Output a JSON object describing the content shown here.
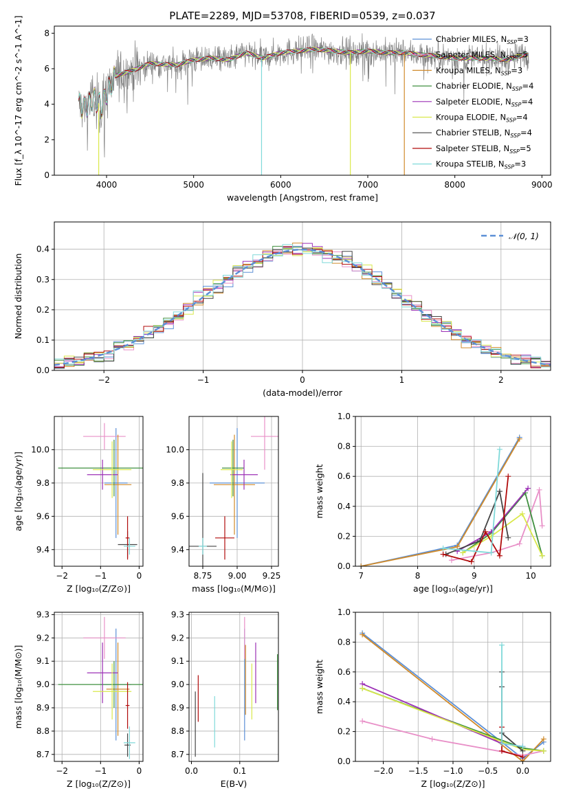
{
  "title": "PLATE=2289, MJD=53708, FIBERID=0539, z=0.037",
  "colors": {
    "Chabrier MILES": "#5b8fd6",
    "Salpeter MILES": "#e88fc7",
    "Kroupa MILES": "#d08a2a",
    "Chabrier ELODIE": "#3f8f3f",
    "Salpeter ELODIE": "#9b2fb5",
    "Kroupa ELODIE": "#d9e84a",
    "Chabrier STELIB": "#444444",
    "Salpeter STELIB": "#b00a0a",
    "Kroupa STELIB": "#7fd9d9",
    "normal": "#5b8fd6",
    "grid": "#b0b0b0"
  },
  "legend_spectrum": [
    {
      "model": "Chabrier MILES",
      "nssp": "3"
    },
    {
      "model": "Salpeter MILES",
      "nssp": "5"
    },
    {
      "model": "Kroupa MILES",
      "nssp": "3"
    },
    {
      "model": "Chabrier ELODIE",
      "nssp": "4"
    },
    {
      "model": "Salpeter ELODIE",
      "nssp": "4"
    },
    {
      "model": "Kroupa ELODIE",
      "nssp": "4"
    },
    {
      "model": "Chabrier STELIB",
      "nssp": "4"
    },
    {
      "model": "Salpeter STELIB",
      "nssp": "5"
    },
    {
      "model": "Kroupa STELIB",
      "nssp": "3"
    }
  ],
  "legend_hist": "𝒩(0, 1)",
  "chart_data": [
    {
      "id": "spectrum",
      "type": "line",
      "xlabel": "wavelength [Angstrom, rest frame]",
      "ylabel": "Flux [f_λ 10^-17 erg cm^-2 s^-1 A^-1]",
      "xlim": [
        3400,
        9100
      ],
      "ylim": [
        0,
        8.4
      ],
      "xticks": [
        4000,
        5000,
        6000,
        7000,
        8000,
        9000
      ],
      "yticks": [
        0,
        2,
        4,
        6,
        8
      ],
      "data_x": [
        3680,
        3750,
        3850,
        3950,
        4000,
        4100,
        4300,
        4500,
        4800,
        5000,
        5200,
        5400,
        5600,
        5800,
        6000,
        6200,
        6400,
        6600,
        6800,
        7000,
        7200,
        7400,
        7600,
        7800,
        8000,
        8200,
        8400,
        8600,
        8800
      ],
      "data_y": [
        4.0,
        3.8,
        4.3,
        3.9,
        4.6,
        5.6,
        5.9,
        6.3,
        6.2,
        6.5,
        6.6,
        6.5,
        6.9,
        6.6,
        6.9,
        7.0,
        7.1,
        7.0,
        6.9,
        7.0,
        6.9,
        6.9,
        6.8,
        6.7,
        6.6,
        6.6,
        6.6,
        6.5,
        6.8
      ],
      "model_drops": [
        {
          "model": "Kroupa STELIB",
          "x": 5780
        },
        {
          "model": "Kroupa ELODIE",
          "x": 6800
        },
        {
          "model": "Kroupa MILES",
          "x": 7420
        },
        {
          "model": "Kroupa ELODIE",
          "x": 3910
        }
      ]
    },
    {
      "id": "residuals",
      "type": "histogram",
      "xlabel": "(data-model)/error",
      "ylabel": "Normed distribution",
      "xlim": [
        -2.5,
        2.5
      ],
      "ylim": [
        0,
        0.49
      ],
      "xticks": [
        -2,
        -1,
        0,
        1,
        2
      ],
      "yticks": [
        0.0,
        0.1,
        0.2,
        0.3,
        0.4
      ],
      "bin_width": 0.1
    },
    {
      "id": "age_vs_Z",
      "type": "scatter",
      "xlabel": "Z [log₁₀(Z/Z⊙)]",
      "ylabel": "age  [log₁₀(age/yr)]",
      "xlim": [
        -2.2,
        0.1
      ],
      "ylim": [
        9.3,
        10.2
      ],
      "xticks": [
        -2,
        -1,
        0
      ],
      "yticks": [
        9.4,
        9.6,
        9.8,
        10.0
      ],
      "points": [
        {
          "model": "Chabrier MILES",
          "x": -0.6,
          "y": 9.8,
          "ex": 0.3,
          "ey": 0.33
        },
        {
          "model": "Salpeter MILES",
          "x": -0.9,
          "y": 10.08,
          "ex": 0.55,
          "ey": 0.08
        },
        {
          "model": "Kroupa MILES",
          "x": -0.55,
          "y": 9.79,
          "ex": 0.35,
          "ey": 0.3
        },
        {
          "model": "Chabrier ELODIE",
          "x": -0.65,
          "y": 9.89,
          "ex": 1.45,
          "ey": 0.17
        },
        {
          "model": "Salpeter ELODIE",
          "x": -0.95,
          "y": 9.85,
          "ex": 0.4,
          "ey": 0.09
        },
        {
          "model": "Kroupa ELODIE",
          "x": -0.7,
          "y": 9.88,
          "ex": 0.5,
          "ey": 0.17
        },
        {
          "model": "Chabrier STELIB",
          "x": -0.3,
          "y": 9.43,
          "ex": 0.25,
          "ey": 0.08
        },
        {
          "model": "Salpeter STELIB",
          "x": -0.3,
          "y": 9.47,
          "ex": 0.05,
          "ey": 0.13
        },
        {
          "model": "Kroupa STELIB",
          "x": -0.25,
          "y": 9.42,
          "ex": 0.15,
          "ey": 0.05
        }
      ]
    },
    {
      "id": "age_vs_mass",
      "type": "scatter",
      "xlabel": "mass [log₁₀(M/M⊙)]",
      "ylabel": "",
      "xlim": [
        8.65,
        9.3
      ],
      "ylim": [
        9.3,
        10.2
      ],
      "xticks": [
        8.75,
        9.0,
        9.25
      ],
      "yticks": [
        9.4,
        9.6,
        9.8,
        10.0
      ],
      "points": [
        {
          "model": "Chabrier MILES",
          "x": 9.0,
          "y": 9.8,
          "ex": 0.2,
          "ey": 0.33
        },
        {
          "model": "Salpeter MILES",
          "x": 9.2,
          "y": 10.08,
          "ex": 0.1,
          "ey": 0.2
        },
        {
          "model": "Kroupa MILES",
          "x": 8.98,
          "y": 9.79,
          "ex": 0.15,
          "ey": 0.3
        },
        {
          "model": "Chabrier ELODIE",
          "x": 8.97,
          "y": 9.89,
          "ex": 0.08,
          "ey": 0.17
        },
        {
          "model": "Salpeter ELODIE",
          "x": 9.05,
          "y": 9.85,
          "ex": 0.1,
          "ey": 0.09
        },
        {
          "model": "Kroupa ELODIE",
          "x": 8.96,
          "y": 9.88,
          "ex": 0.08,
          "ey": 0.17
        },
        {
          "model": "Chabrier STELIB",
          "x": 8.75,
          "y": 9.42,
          "ex": 0.1,
          "ey": 0.44
        },
        {
          "model": "Salpeter STELIB",
          "x": 8.91,
          "y": 9.47,
          "ex": 0.07,
          "ey": 0.13
        },
        {
          "model": "Kroupa STELIB",
          "x": 8.75,
          "y": 9.42,
          "ex": 0.03,
          "ey": 0.05
        }
      ]
    },
    {
      "id": "weight_vs_age",
      "type": "line",
      "xlabel": "age  [log₁₀(age/yr)]",
      "ylabel": "mass weight",
      "xlim": [
        6.9,
        10.35
      ],
      "ylim": [
        0,
        1.0
      ],
      "xticks": [
        7,
        8,
        9,
        10
      ],
      "yticks": [
        0.0,
        0.2,
        0.4,
        0.6,
        0.8,
        1.0
      ],
      "series": [
        {
          "model": "Chabrier MILES",
          "x": [
            7.0,
            8.7,
            9.8
          ],
          "y": [
            0.0,
            0.14,
            0.86
          ]
        },
        {
          "model": "Kroupa MILES",
          "x": [
            7.0,
            8.7,
            9.8
          ],
          "y": [
            0.0,
            0.13,
            0.85
          ]
        },
        {
          "model": "Salpeter MILES",
          "x": [
            8.6,
            9.3,
            9.8,
            10.15,
            10.2
          ],
          "y": [
            0.04,
            0.09,
            0.15,
            0.51,
            0.27
          ]
        },
        {
          "model": "Chabrier ELODIE",
          "x": [
            8.8,
            9.3,
            9.9,
            10.2
          ],
          "y": [
            0.09,
            0.22,
            0.49,
            0.07
          ]
        },
        {
          "model": "Salpeter ELODIE",
          "x": [
            8.7,
            9.3,
            9.95
          ],
          "y": [
            0.1,
            0.23,
            0.52
          ]
        },
        {
          "model": "Kroupa ELODIE",
          "x": [
            8.8,
            9.3,
            9.85,
            10.2
          ],
          "y": [
            0.09,
            0.2,
            0.35,
            0.07
          ]
        },
        {
          "model": "Chabrier STELIB",
          "x": [
            8.5,
            9.1,
            9.45,
            9.6
          ],
          "y": [
            0.08,
            0.17,
            0.5,
            0.19
          ]
        },
        {
          "model": "Salpeter STELIB",
          "x": [
            8.45,
            8.95,
            9.2,
            9.45,
            9.6
          ],
          "y": [
            0.08,
            0.03,
            0.23,
            0.07,
            0.6
          ]
        },
        {
          "model": "Kroupa STELIB",
          "x": [
            8.45,
            9.3,
            9.45
          ],
          "y": [
            0.12,
            0.09,
            0.78
          ]
        }
      ]
    },
    {
      "id": "mass_vs_Z",
      "type": "scatter",
      "xlabel": "Z [log₁₀(Z/Z⊙)]",
      "ylabel": "mass [log₁₀(M/M⊙)]",
      "xlim": [
        -2.2,
        0.1
      ],
      "ylim": [
        8.67,
        9.31
      ],
      "xticks": [
        -2,
        -1,
        0
      ],
      "yticks": [
        8.7,
        8.8,
        8.9,
        9.0,
        9.1,
        9.2,
        9.3
      ],
      "points": [
        {
          "model": "Chabrier MILES",
          "x": -0.6,
          "y": 9.0,
          "ex": 0.4,
          "ey": 0.24
        },
        {
          "model": "Salpeter MILES",
          "x": -0.9,
          "y": 9.2,
          "ex": 0.55,
          "ey": 0.09
        },
        {
          "model": "Kroupa MILES",
          "x": -0.55,
          "y": 8.98,
          "ex": 0.3,
          "ey": 0.2
        },
        {
          "model": "Chabrier ELODIE",
          "x": -0.65,
          "y": 9.0,
          "ex": 1.45,
          "ey": 0.1
        },
        {
          "model": "Salpeter ELODIE",
          "x": -0.95,
          "y": 9.05,
          "ex": 0.4,
          "ey": 0.13
        },
        {
          "model": "Kroupa ELODIE",
          "x": -0.7,
          "y": 8.97,
          "ex": 0.5,
          "ey": 0.12
        },
        {
          "model": "Chabrier STELIB",
          "x": -0.3,
          "y": 8.74,
          "ex": 0.08,
          "ey": 0.05
        },
        {
          "model": "Salpeter STELIB",
          "x": -0.3,
          "y": 8.91,
          "ex": 0.05,
          "ey": 0.1
        },
        {
          "model": "Kroupa STELIB",
          "x": -0.25,
          "y": 8.75,
          "ex": 0.15,
          "ey": 0.07
        }
      ]
    },
    {
      "id": "mass_vs_ebv",
      "type": "scatter",
      "xlabel": "E(B-V)",
      "ylabel": "",
      "xlim": [
        -0.005,
        0.18
      ],
      "ylim": [
        8.67,
        9.31
      ],
      "xticks": [
        0.0,
        0.1
      ],
      "yticks": [
        8.7,
        8.8,
        8.9,
        9.0,
        9.1,
        9.2,
        9.3
      ],
      "points": [
        {
          "model": "Chabrier MILES",
          "x": 0.11,
          "y": 9.0,
          "ex": 0,
          "ey": 0.24
        },
        {
          "model": "Salpeter MILES",
          "x": 0.11,
          "y": 9.2,
          "ex": 0,
          "ey": 0.09
        },
        {
          "model": "Kroupa MILES",
          "x": 0.112,
          "y": 9.02,
          "ex": 0,
          "ey": 0.15
        },
        {
          "model": "Chabrier ELODIE",
          "x": 0.178,
          "y": 9.01,
          "ex": 0,
          "ey": 0.12
        },
        {
          "model": "Salpeter ELODIE",
          "x": 0.133,
          "y": 9.05,
          "ex": 0,
          "ey": 0.13
        },
        {
          "model": "Kroupa ELODIE",
          "x": 0.125,
          "y": 8.97,
          "ex": 0,
          "ey": 0.12
        },
        {
          "model": "Chabrier STELIB",
          "x": 0.008,
          "y": 8.83,
          "ex": 0,
          "ey": 0.14
        },
        {
          "model": "Salpeter STELIB",
          "x": 0.014,
          "y": 8.94,
          "ex": 0,
          "ey": 0.1
        },
        {
          "model": "Kroupa STELIB",
          "x": 0.048,
          "y": 8.84,
          "ex": 0,
          "ey": 0.11
        }
      ]
    },
    {
      "id": "weight_vs_Z",
      "type": "line",
      "xlabel": "Z [log₁₀(Z/Z⊙)]",
      "ylabel": "mass weight",
      "xlim": [
        -2.4,
        0.4
      ],
      "ylim": [
        0,
        1.0
      ],
      "xticks": [
        -2.0,
        -1.5,
        -1.0,
        -0.5,
        0.0
      ],
      "yticks": [
        0.0,
        0.2,
        0.4,
        0.6,
        0.8,
        1.0
      ],
      "series": [
        {
          "model": "Chabrier MILES",
          "x": [
            -2.3,
            0.0,
            0.3
          ],
          "y": [
            0.86,
            0.02,
            0.13
          ]
        },
        {
          "model": "Kroupa MILES",
          "x": [
            -2.3,
            0.0,
            0.3
          ],
          "y": [
            0.85,
            0.0,
            0.15
          ]
        },
        {
          "model": "Salpeter MILES",
          "x": [
            -2.3,
            -1.3,
            0.0,
            0.3
          ],
          "y": [
            0.27,
            0.15,
            0.04,
            0.07
          ]
        },
        {
          "model": "Chabrier ELODIE",
          "x": [
            -2.3,
            0.0,
            0.3
          ],
          "y": [
            0.49,
            0.09,
            0.07
          ]
        },
        {
          "model": "Salpeter ELODIE",
          "x": [
            -2.3,
            -0.3,
            0.0
          ],
          "y": [
            0.52,
            0.12,
            0.1
          ]
        },
        {
          "model": "Kroupa ELODIE",
          "x": [
            -2.3,
            0.0,
            0.3
          ],
          "y": [
            0.49,
            0.08,
            0.07
          ]
        },
        {
          "model": "Chabrier STELIB",
          "x": [
            -0.3,
            -0.3,
            -0.3,
            0.0
          ],
          "y": [
            0.6,
            0.5,
            0.19,
            0.07
          ]
        },
        {
          "model": "Salpeter STELIB",
          "x": [
            -0.3,
            -0.3,
            0.0
          ],
          "y": [
            0.23,
            0.07,
            0.03
          ]
        },
        {
          "model": "Kroupa STELIB",
          "x": [
            -0.3,
            -0.3,
            0.0
          ],
          "y": [
            0.78,
            0.12,
            0.1
          ]
        }
      ]
    }
  ]
}
